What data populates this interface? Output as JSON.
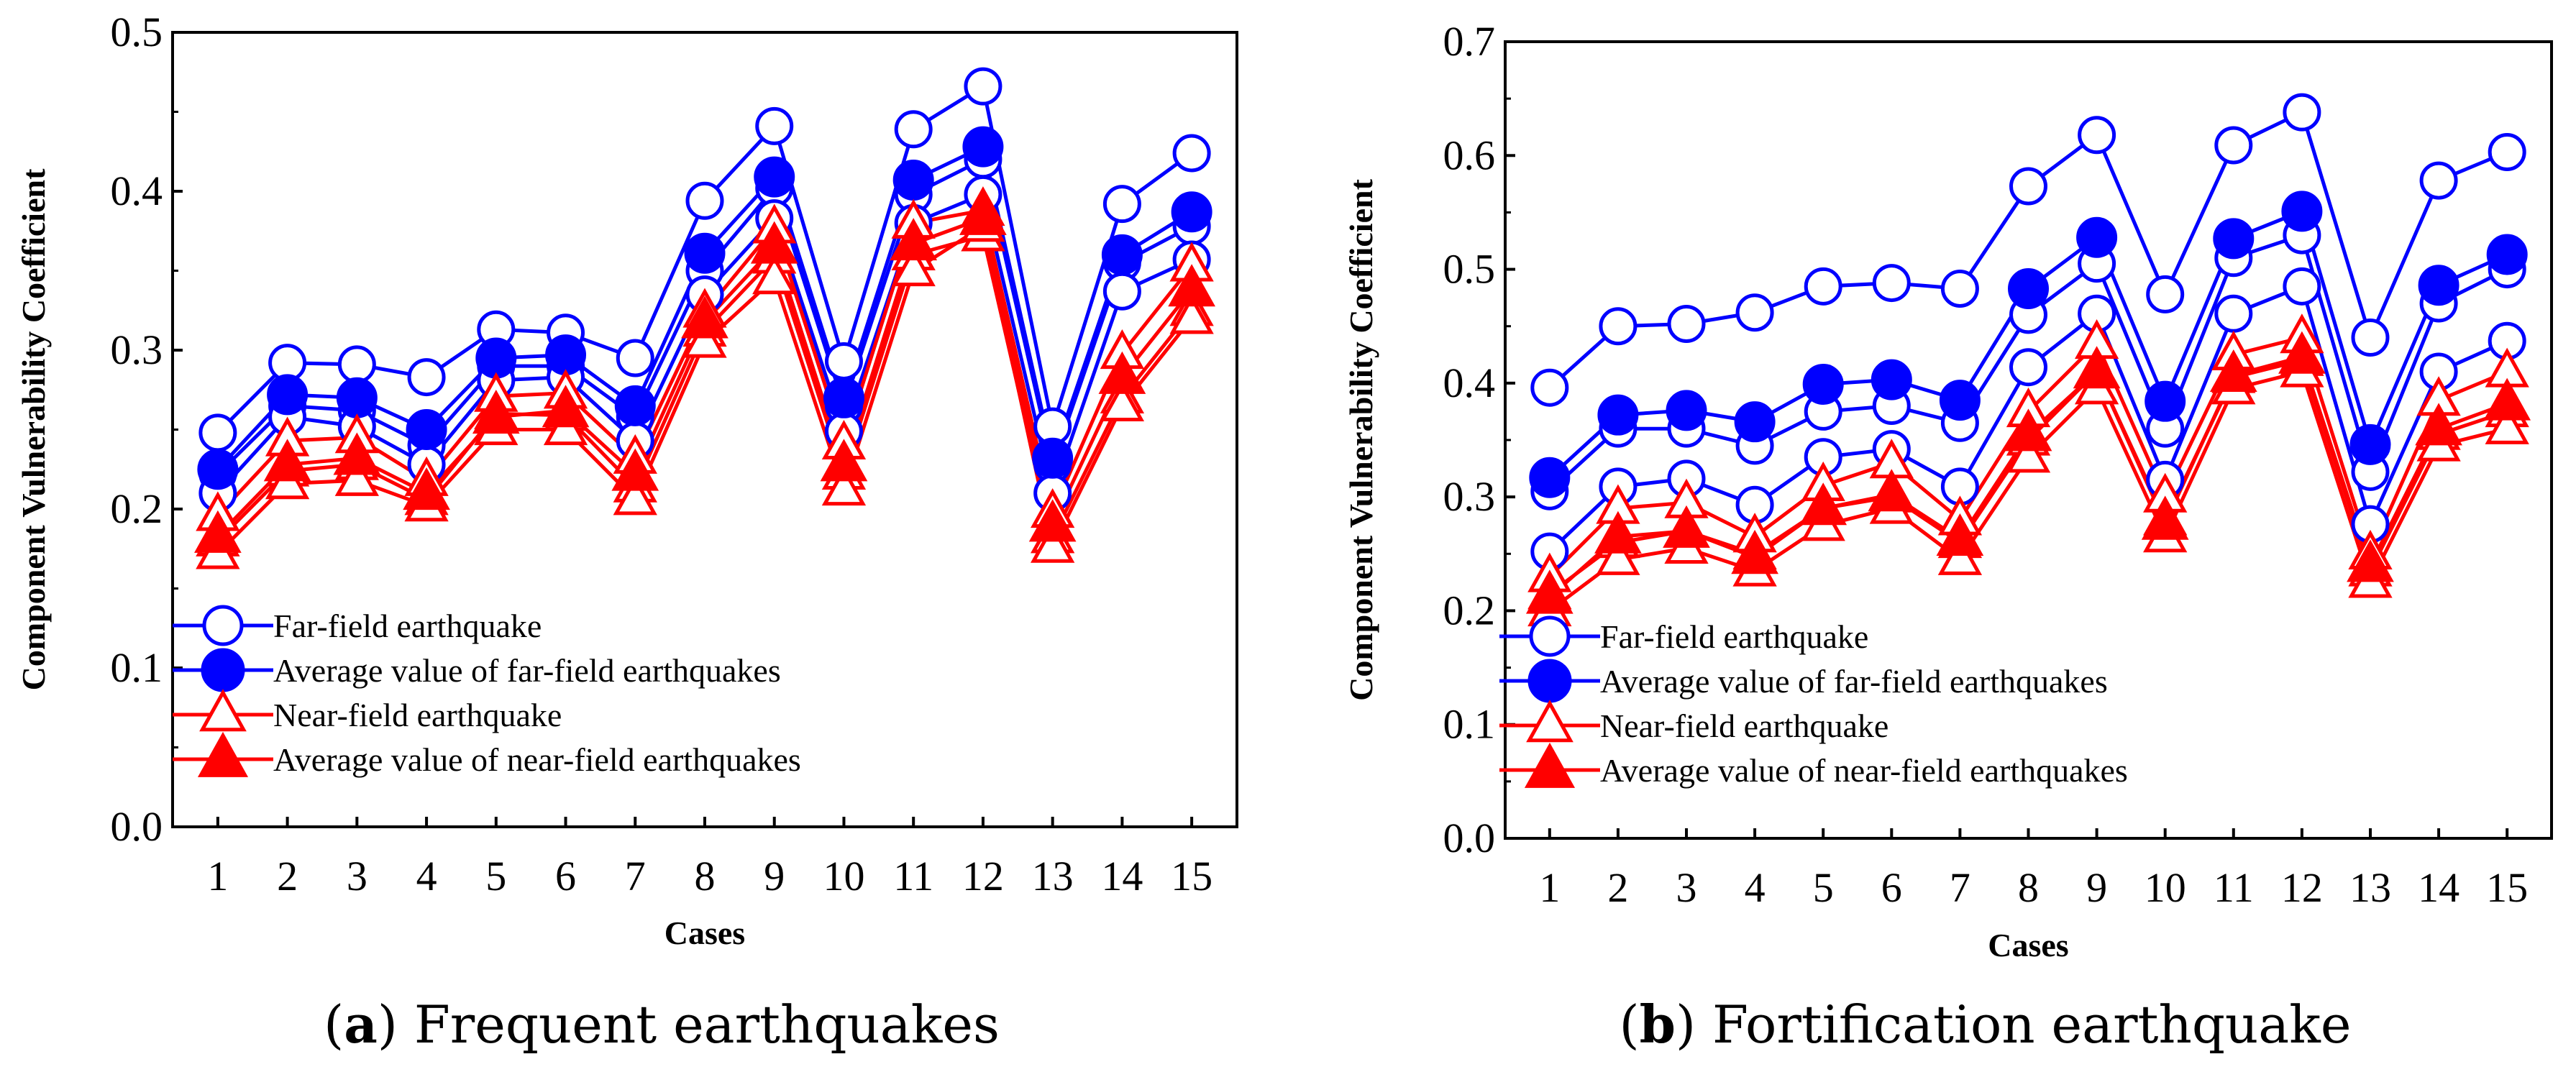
{
  "chart_data": [
    {
      "id": "a",
      "type": "line",
      "caption_letter": "a",
      "caption_text": "Frequent earthquakes",
      "xlabel": "Cases",
      "ylabel": "Component Vulnerability Coefficient",
      "categories": [
        "1",
        "2",
        "3",
        "4",
        "5",
        "6",
        "7",
        "8",
        "9",
        "10",
        "11",
        "12",
        "13",
        "14",
        "15"
      ],
      "ylim": [
        0,
        0.5
      ],
      "yticks": [
        0.0,
        0.1,
        0.2,
        0.3,
        0.4,
        0.5
      ],
      "ytick_labels": [
        "0.0",
        "0.1",
        "0.2",
        "0.3",
        "0.4",
        "0.5"
      ],
      "legend": [
        {
          "label": "Far-field earthquake",
          "marker": "circle-open",
          "color": "#0000ff"
        },
        {
          "label": "Average value of far-field earthquakes",
          "marker": "circle-filled",
          "color": "#0000ff"
        },
        {
          "label": "Near-field earthquake",
          "marker": "triangle-open",
          "color": "#ff0000"
        },
        {
          "label": "Average value of near-field earthquakes",
          "marker": "triangle-filled",
          "color": "#ff0000"
        }
      ],
      "series": [
        {
          "name": "Far-field earthquake",
          "marker": "circle-open",
          "color": "#0000ff",
          "values": [
            0.248,
            0.292,
            0.291,
            0.283,
            0.313,
            0.311,
            0.295,
            0.394,
            0.441,
            0.293,
            0.439,
            0.466,
            0.252,
            0.392,
            0.424
          ]
        },
        {
          "name": "Far-field earthquake",
          "marker": "circle-open",
          "color": "#0000ff",
          "values": [
            0.222,
            0.265,
            0.262,
            0.24,
            0.29,
            0.29,
            0.258,
            0.35,
            0.402,
            0.265,
            0.398,
            0.42,
            0.228,
            0.355,
            0.378
          ]
        },
        {
          "name": "Far-field earthquake",
          "marker": "circle-open",
          "color": "#0000ff",
          "values": [
            0.21,
            0.258,
            0.252,
            0.228,
            0.281,
            0.283,
            0.243,
            0.335,
            0.383,
            0.249,
            0.38,
            0.398,
            0.21,
            0.337,
            0.357
          ]
        },
        {
          "name": "Average value of far-field earthquakes",
          "marker": "circle-filled",
          "color": "#0000ff",
          "values": [
            0.225,
            0.272,
            0.27,
            0.25,
            0.295,
            0.297,
            0.265,
            0.361,
            0.409,
            0.27,
            0.407,
            0.428,
            0.232,
            0.36,
            0.387
          ]
        },
        {
          "name": "Near-field earthquake",
          "marker": "triangle-open",
          "color": "#ff0000",
          "values": [
            0.196,
            0.243,
            0.245,
            0.218,
            0.271,
            0.273,
            0.232,
            0.324,
            0.377,
            0.241,
            0.38,
            0.388,
            0.198,
            0.298,
            0.353
          ]
        },
        {
          "name": "Near-field earthquake",
          "marker": "triangle-open",
          "color": "#ff0000",
          "values": [
            0.18,
            0.224,
            0.228,
            0.206,
            0.26,
            0.259,
            0.214,
            0.312,
            0.358,
            0.222,
            0.36,
            0.372,
            0.182,
            0.27,
            0.325
          ]
        },
        {
          "name": "Near-field earthquake",
          "marker": "triangle-open",
          "color": "#ff0000",
          "values": [
            0.172,
            0.216,
            0.218,
            0.202,
            0.25,
            0.25,
            0.206,
            0.305,
            0.345,
            0.212,
            0.35,
            0.378,
            0.176,
            0.265,
            0.32
          ]
        },
        {
          "name": "Average value of near-field earthquakes",
          "marker": "triangle-filled",
          "color": "#ff0000",
          "values": [
            0.183,
            0.228,
            0.232,
            0.21,
            0.258,
            0.262,
            0.222,
            0.318,
            0.365,
            0.228,
            0.367,
            0.383,
            0.19,
            0.283,
            0.338
          ]
        }
      ]
    },
    {
      "id": "b",
      "type": "line",
      "caption_letter": "b",
      "caption_text": "Fortification earthquake",
      "xlabel": "Cases",
      "ylabel": "Component Vulnerability Coefficient",
      "categories": [
        "1",
        "2",
        "3",
        "4",
        "5",
        "6",
        "7",
        "8",
        "9",
        "10",
        "11",
        "12",
        "13",
        "14",
        "15"
      ],
      "ylim": [
        0,
        0.7
      ],
      "yticks": [
        0.0,
        0.1,
        0.2,
        0.3,
        0.4,
        0.5,
        0.6,
        0.7
      ],
      "ytick_labels": [
        "0.0",
        "0.1",
        "0.2",
        "0.3",
        "0.4",
        "0.5",
        "0.6",
        "0.7"
      ],
      "legend": [
        {
          "label": "Far-field earthquake",
          "marker": "circle-open",
          "color": "#0000ff"
        },
        {
          "label": "Average value of far-field earthquakes",
          "marker": "circle-filled",
          "color": "#0000ff"
        },
        {
          "label": "Near-field earthquake",
          "marker": "triangle-open",
          "color": "#ff0000"
        },
        {
          "label": "Average value of near-field earthquakes",
          "marker": "triangle-filled",
          "color": "#ff0000"
        }
      ],
      "series": [
        {
          "name": "Far-field earthquake",
          "marker": "circle-open",
          "color": "#0000ff",
          "values": [
            0.396,
            0.45,
            0.452,
            0.462,
            0.485,
            0.488,
            0.483,
            0.573,
            0.618,
            0.478,
            0.609,
            0.638,
            0.44,
            0.578,
            0.603
          ]
        },
        {
          "name": "Far-field earthquake",
          "marker": "circle-open",
          "color": "#0000ff",
          "values": [
            0.305,
            0.36,
            0.36,
            0.345,
            0.375,
            0.38,
            0.365,
            0.46,
            0.505,
            0.36,
            0.51,
            0.53,
            0.322,
            0.47,
            0.5
          ]
        },
        {
          "name": "Far-field earthquake",
          "marker": "circle-open",
          "color": "#0000ff",
          "values": [
            0.252,
            0.309,
            0.316,
            0.293,
            0.335,
            0.342,
            0.309,
            0.414,
            0.461,
            0.315,
            0.461,
            0.485,
            0.276,
            0.41,
            0.437
          ]
        },
        {
          "name": "Average value of far-field earthquakes",
          "marker": "circle-filled",
          "color": "#0000ff",
          "values": [
            0.317,
            0.372,
            0.376,
            0.366,
            0.399,
            0.403,
            0.385,
            0.483,
            0.528,
            0.384,
            0.527,
            0.551,
            0.346,
            0.486,
            0.513
          ]
        },
        {
          "name": "Near-field earthquake",
          "marker": "triangle-open",
          "color": "#ff0000",
          "values": [
            0.23,
            0.29,
            0.295,
            0.265,
            0.31,
            0.33,
            0.28,
            0.375,
            0.435,
            0.3,
            0.425,
            0.44,
            0.25,
            0.385,
            0.41
          ]
        },
        {
          "name": "Near-field earthquake",
          "marker": "triangle-open",
          "color": "#ff0000",
          "values": [
            0.215,
            0.26,
            0.27,
            0.25,
            0.29,
            0.3,
            0.26,
            0.35,
            0.41,
            0.28,
            0.405,
            0.42,
            0.235,
            0.355,
            0.375
          ]
        },
        {
          "name": "Near-field earthquake",
          "marker": "triangle-open",
          "color": "#ff0000",
          "values": [
            0.2,
            0.245,
            0.255,
            0.235,
            0.275,
            0.29,
            0.245,
            0.335,
            0.395,
            0.265,
            0.395,
            0.41,
            0.225,
            0.345,
            0.36
          ]
        },
        {
          "name": "Average value of near-field earthquakes",
          "marker": "triangle-filled",
          "color": "#ff0000",
          "values": [
            0.212,
            0.265,
            0.27,
            0.247,
            0.29,
            0.302,
            0.263,
            0.355,
            0.41,
            0.277,
            0.407,
            0.423,
            0.24,
            0.36,
            0.382
          ]
        }
      ]
    }
  ]
}
